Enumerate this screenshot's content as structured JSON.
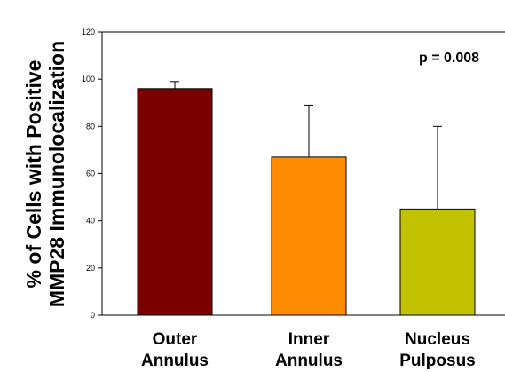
{
  "chart_data": {
    "type": "bar",
    "categories": [
      [
        "Outer",
        "Annulus"
      ],
      [
        "Inner",
        "Annulus"
      ],
      [
        "Nucleus",
        "Pulposus"
      ]
    ],
    "values": [
      96,
      67,
      45
    ],
    "error_plus": [
      3,
      22,
      35
    ],
    "colors": [
      "#7a0000",
      "#ff8c00",
      "#c2c200"
    ],
    "ylabel_lines": [
      "% of Cells with Positive",
      "MMP28 Immunolocalization"
    ],
    "xlabel": "",
    "ylim": [
      0,
      120
    ],
    "yticks": [
      0,
      20,
      40,
      60,
      80,
      100,
      120
    ],
    "annotation": "p = 0.008",
    "grid": false,
    "legend": "none"
  }
}
